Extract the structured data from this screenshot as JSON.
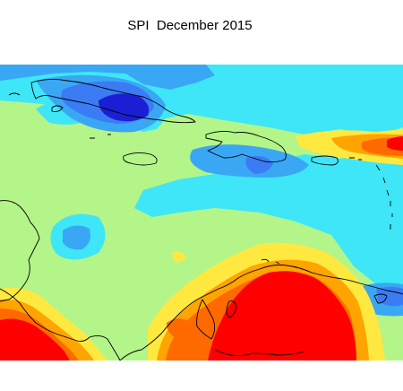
{
  "header": {
    "title": "SPI  December 2015"
  },
  "map": {
    "region": "Caribbean Sea",
    "variable": "SPI",
    "period": "December 2015",
    "palette": {
      "near_normal": "#b3f589",
      "moderately_wet": "#3fe6f7",
      "very_wet": "#3aa7f4",
      "wet_blue": "#3b7cf5",
      "extremely_wet": "#1a1fd4",
      "moderately_dry": "#ffe940",
      "severely_dry": "#ffa400",
      "very_dry": "#ff6a00",
      "extremely_dry": "#ff0000",
      "coastline": "#000000"
    },
    "features": [
      {
        "name": "cuba-wet-anomaly",
        "class": "extremely_wet"
      },
      {
        "name": "eastern-caribbean-wet-band",
        "class": "moderately_wet"
      },
      {
        "name": "venezuela-dry-anomaly",
        "class": "extremely_dry"
      },
      {
        "name": "central-america-dry-anomaly",
        "class": "extremely_dry"
      },
      {
        "name": "puerto-rico-dry-anomaly",
        "class": "very_dry"
      },
      {
        "name": "lesser-antilles-wet-anomaly",
        "class": "wet_blue"
      }
    ]
  }
}
